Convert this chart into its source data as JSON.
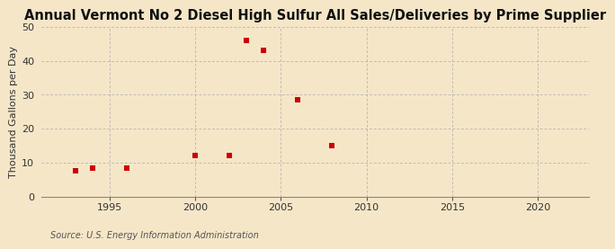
{
  "title": "Annual Vermont No 2 Diesel High Sulfur All Sales/Deliveries by Prime Supplier",
  "ylabel": "Thousand Gallons per Day",
  "source": "Source: U.S. Energy Information Administration",
  "background_color": "#f5e6c8",
  "plot_bg_color": "#f5e6c8",
  "data_points": [
    [
      1993,
      7.5
    ],
    [
      1994,
      8.5
    ],
    [
      1996,
      8.5
    ],
    [
      2000,
      12.0
    ],
    [
      2002,
      12.0
    ],
    [
      2003,
      46.0
    ],
    [
      2004,
      43.0
    ],
    [
      2006,
      28.5
    ],
    [
      2008,
      15.0
    ]
  ],
  "marker_color": "#cc0000",
  "marker_size": 25,
  "xlim": [
    1991,
    2023
  ],
  "ylim": [
    0,
    50
  ],
  "xticks": [
    1995,
    2000,
    2005,
    2010,
    2015,
    2020
  ],
  "yticks": [
    0,
    10,
    20,
    30,
    40,
    50
  ],
  "title_fontsize": 10.5,
  "label_fontsize": 8,
  "tick_fontsize": 8,
  "source_fontsize": 7
}
